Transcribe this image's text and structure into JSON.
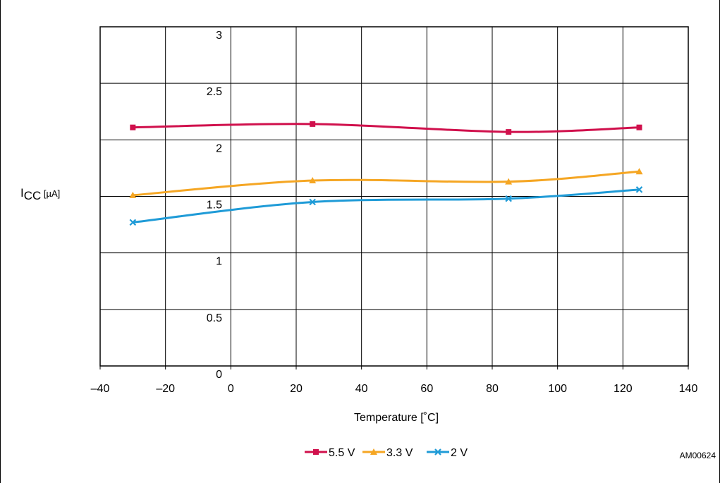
{
  "figure_id": "AM00624",
  "chart_data": {
    "type": "line",
    "xlabel": "Temperature [˚C]",
    "ylabel": {
      "main": "I",
      "sub": "CC",
      "unit": " [µA]"
    },
    "xlim": [
      -40,
      140
    ],
    "ylim": [
      0,
      3
    ],
    "x_ticks": [
      "–40",
      "–20",
      "0",
      "20",
      "40",
      "60",
      "80",
      "100",
      "120",
      "140"
    ],
    "y_ticks": [
      "0",
      "0.5",
      "1",
      "1.5",
      "2",
      "2.5",
      "3"
    ],
    "grid": true,
    "legend_position": "bottom-center",
    "x": [
      -30,
      25,
      85,
      125
    ],
    "series": [
      {
        "name": "5.5 V",
        "color": "#d0104c",
        "marker": "square",
        "values": [
          2.11,
          2.14,
          2.07,
          2.11
        ]
      },
      {
        "name": "3.3 V",
        "color": "#f5a623",
        "marker": "triangle",
        "values": [
          1.51,
          1.64,
          1.63,
          1.72
        ]
      },
      {
        "name": "2 V",
        "color": "#1f9bd7",
        "marker": "x",
        "values": [
          1.27,
          1.45,
          1.48,
          1.56
        ]
      }
    ]
  }
}
